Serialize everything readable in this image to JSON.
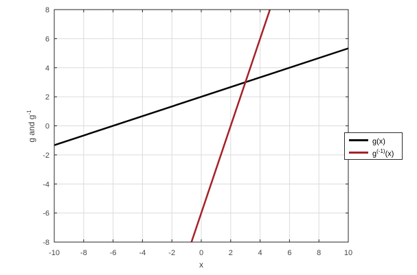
{
  "figure": {
    "xlabel": "x",
    "ylabel_base": "g and g",
    "ylabel_sup": "-1",
    "colors": {
      "background": "#ffffff",
      "axis": "#262626",
      "grid": "#dbdbdb",
      "tick_label": "#454545",
      "black_line": "#000000",
      "red_line": "#a62028"
    }
  },
  "chart_data": {
    "type": "line",
    "title": "",
    "xlabel": "x",
    "ylabel": "g and g^-1",
    "xlim": [
      -10,
      10
    ],
    "ylim": [
      -8,
      8
    ],
    "x_ticks": [
      -10,
      -8,
      -6,
      -4,
      -2,
      0,
      2,
      4,
      6,
      8,
      10
    ],
    "y_ticks": [
      -8,
      -6,
      -4,
      -2,
      0,
      2,
      4,
      6,
      8
    ],
    "grid": true,
    "legend_position": "outside-right-middle",
    "series": [
      {
        "name": "g(x)",
        "color": "#000000",
        "line_width": 2.5,
        "points": [
          [
            -10,
            -1.333
          ],
          [
            10,
            5.333
          ]
        ]
      },
      {
        "name": "g^(-1)(x)",
        "color": "#a62028",
        "line_width": 2.5,
        "points": [
          [
            -0.667,
            -8
          ],
          [
            4.667,
            8
          ]
        ]
      }
    ]
  },
  "legend": {
    "items": [
      {
        "base": "g",
        "sup": "",
        "rest": "(x)",
        "color": "#000000"
      },
      {
        "base": "g",
        "sup": "(-1)",
        "rest": "(x)",
        "color": "#a62028"
      }
    ]
  }
}
